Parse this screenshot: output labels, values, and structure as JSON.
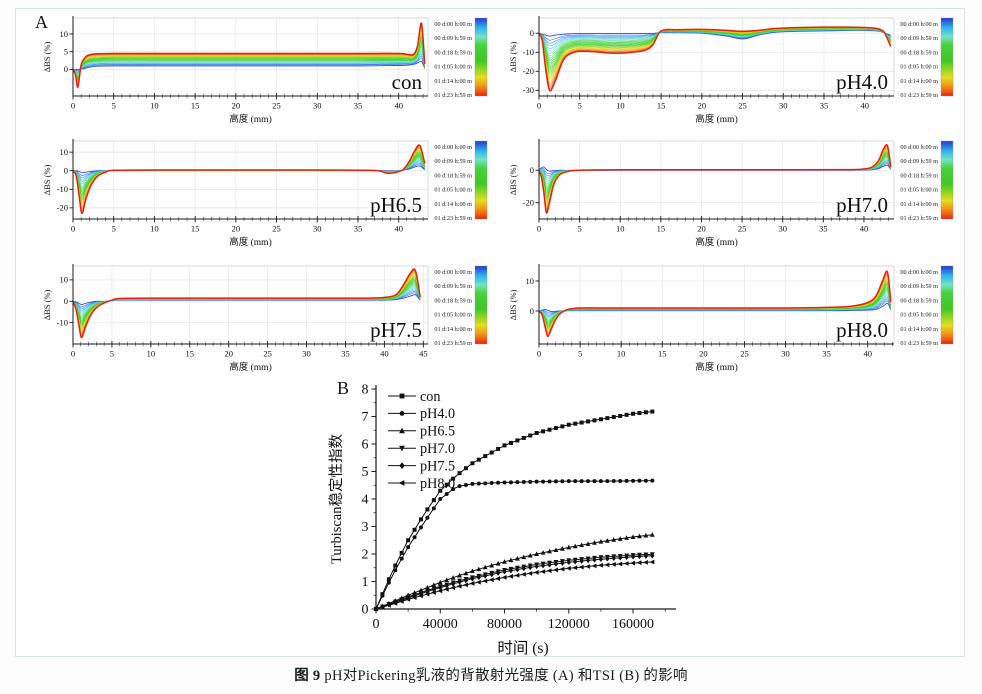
{
  "figure": {
    "panel_a_label": "A",
    "panel_b_label": "B",
    "caption_prefix": "图 9",
    "caption_body": " pH对Pickering乳液的背散射光强度 (A) 和TSI (B) 的影响"
  },
  "time_labels": [
    "00 d:00 h:00 m",
    "00 d:09 h:59 m",
    "00 d:18 h:59 m",
    "01 d:05 h:00 m",
    "01 d:14 h:00 m",
    "01 d:23 h:59 m"
  ],
  "palette": {
    "gradient_stops": [
      [
        0,
        "#2438d6"
      ],
      [
        0.13,
        "#2fb6ec"
      ],
      [
        0.24,
        "#74e4c6"
      ],
      [
        0.35,
        "#47d23c"
      ],
      [
        0.55,
        "#40c826"
      ],
      [
        0.66,
        "#90d622"
      ],
      [
        0.76,
        "#e4de1e"
      ],
      [
        0.86,
        "#f29d1a"
      ],
      [
        0.94,
        "#ee5c14"
      ],
      [
        1,
        "#e8200e"
      ]
    ],
    "axis": "#1a1a1a",
    "grid": "#dfe3e6",
    "frame": "#c3c9cd",
    "border": "#d8e6e2"
  },
  "chart_data": [
    {
      "id": "con",
      "panel": "A",
      "type": "line",
      "label": "con",
      "xlabel": "高度 (mm)",
      "ylabel": "ΔBS (%)",
      "xlim": [
        0,
        43.6
      ],
      "ylim": [
        -7.5,
        14.5
      ],
      "xticks": [
        0,
        5,
        10,
        15,
        20,
        25,
        30,
        35,
        40
      ],
      "yticks": [
        0,
        5,
        10
      ],
      "x": [
        0,
        0.3,
        0.6,
        1,
        1.5,
        2,
        3,
        5,
        10,
        15,
        20,
        25,
        30,
        35,
        40,
        41,
        41.8,
        42.3,
        42.8,
        43.2
      ],
      "initial": [
        0,
        0,
        0,
        0.1,
        0.3,
        0.6,
        0.9,
        1,
        1,
        1,
        1,
        1,
        1,
        1,
        1.1,
        1.2,
        1.4,
        1.8,
        2.2,
        0.3
      ],
      "final": [
        0,
        -1.5,
        -5,
        1.2,
        3.4,
        4.1,
        4.4,
        4.5,
        4.5,
        4.5,
        4.5,
        4.5,
        4.5,
        4.5,
        4.5,
        4.3,
        4.2,
        6.5,
        13,
        1.5
      ]
    },
    {
      "id": "ph40",
      "panel": "A",
      "type": "line",
      "label": "pH4.0",
      "xlabel": "高度 (mm)",
      "ylabel": "ΔBS (%)",
      "xlim": [
        0,
        43.6
      ],
      "ylim": [
        -33,
        8
      ],
      "xticks": [
        0,
        5,
        10,
        15,
        20,
        25,
        30,
        35,
        40
      ],
      "yticks": [
        0,
        -10,
        -20,
        -30
      ],
      "x": [
        0,
        0.4,
        0.8,
        1.3,
        2,
        3,
        4,
        5,
        7,
        9,
        11,
        13,
        14,
        15,
        17,
        20,
        23,
        25,
        27,
        29,
        32,
        35,
        38,
        40,
        41.5,
        42.3,
        42.8,
        43.2
      ],
      "initial": [
        0,
        -0.5,
        -1,
        -1.5,
        -1,
        -0.5,
        -0.3,
        -0.2,
        -0.2,
        -0.2,
        -0.2,
        -0.2,
        -0.1,
        0.3,
        0.2,
        0,
        -1.5,
        -3,
        -1,
        0.5,
        1,
        1.2,
        1.5,
        1.5,
        1.2,
        0.5,
        -0.5,
        -1
      ],
      "final": [
        0,
        -4,
        -18,
        -30,
        -25,
        -14,
        -10.5,
        -9.5,
        -9.8,
        -10.5,
        -10.2,
        -9,
        -6,
        1.2,
        1.8,
        2,
        1.5,
        1,
        1.5,
        2.5,
        3,
        3.2,
        3.2,
        3,
        2.5,
        1,
        -3,
        -7
      ]
    },
    {
      "id": "ph65",
      "panel": "A",
      "type": "line",
      "label": "pH6.5",
      "xlabel": "高度 (mm)",
      "ylabel": "ΔBS (%)",
      "xlim": [
        0,
        43.6
      ],
      "ylim": [
        -26,
        16
      ],
      "xticks": [
        0,
        5,
        10,
        15,
        20,
        25,
        30,
        35,
        40
      ],
      "yticks": [
        10,
        0,
        -10,
        -20
      ],
      "x": [
        0,
        0.4,
        0.8,
        1.1,
        1.6,
        2.2,
        3,
        4,
        5,
        10,
        20,
        30,
        35,
        37.5,
        38.5,
        39.5,
        40.5,
        41.3,
        42,
        42.6,
        43.2
      ],
      "initial": [
        0,
        0,
        -0.5,
        -1,
        -0.8,
        -0.4,
        0,
        0,
        0,
        0,
        0,
        0,
        0,
        0,
        0,
        0,
        0.3,
        1,
        2,
        2.5,
        0.5
      ],
      "final": [
        0,
        -3,
        -15,
        -23,
        -15,
        -8,
        -3,
        -0.8,
        0.2,
        0.4,
        0.4,
        0.4,
        0.3,
        0,
        -1.3,
        -1,
        0.5,
        5,
        11,
        13.5,
        4
      ]
    },
    {
      "id": "ph70",
      "panel": "A",
      "type": "line",
      "label": "pH7.0",
      "xlabel": "高度 (mm)",
      "ylabel": "ΔBS (%)",
      "xlim": [
        0,
        43.7
      ],
      "ylim": [
        -30,
        18
      ],
      "xticks": [
        0,
        5,
        10,
        15,
        20,
        25,
        30,
        35,
        40
      ],
      "yticks": [
        0,
        -20
      ],
      "x": [
        0,
        0.3,
        0.6,
        0.9,
        1.2,
        1.8,
        2.5,
        3.5,
        5,
        10,
        20,
        30,
        38,
        40,
        41,
        41.8,
        42.4,
        42.9,
        43.3
      ],
      "initial": [
        0,
        1.5,
        2,
        0.5,
        -0.5,
        -0.3,
        0,
        0,
        0,
        0,
        0,
        0,
        0,
        0,
        0.3,
        1,
        2.5,
        3,
        0.5
      ],
      "final": [
        -1,
        -4,
        -14,
        -26,
        -22,
        -9,
        -3,
        -0.8,
        0,
        0.3,
        0.3,
        0.3,
        0.4,
        0.8,
        2,
        6,
        13,
        15,
        2
      ]
    },
    {
      "id": "ph75",
      "panel": "A",
      "type": "line",
      "label": "pH7.5",
      "xlabel": "高度 (mm)",
      "ylabel": "ΔBS (%)",
      "xlim": [
        0,
        45.6
      ],
      "ylim": [
        -20,
        16.5
      ],
      "xticks": [
        0,
        5,
        10,
        15,
        20,
        25,
        30,
        35,
        40,
        45
      ],
      "yticks": [
        10,
        0,
        -10
      ],
      "x": [
        0,
        0.4,
        0.8,
        1.1,
        1.6,
        2.2,
        3,
        4,
        5,
        6,
        10,
        20,
        30,
        38,
        40,
        41.5,
        42.5,
        43.4,
        44,
        44.6
      ],
      "initial": [
        0,
        -0.3,
        -1,
        -1.5,
        -1,
        -0.5,
        0,
        0,
        0.3,
        0.5,
        0.5,
        0.5,
        0.5,
        0.5,
        0.5,
        0.8,
        1.5,
        2.5,
        3,
        0.5
      ],
      "final": [
        0,
        -4,
        -12,
        -17,
        -12,
        -7,
        -3,
        -0.8,
        0.5,
        1.3,
        1.5,
        1.5,
        1.5,
        1.5,
        1.8,
        3,
        8,
        13.5,
        14.2,
        2
      ]
    },
    {
      "id": "ph80",
      "panel": "A",
      "type": "line",
      "label": "pH8.0",
      "xlabel": "高度 (mm)",
      "ylabel": "ΔBS (%)",
      "xlim": [
        0,
        43.2
      ],
      "ylim": [
        -11,
        15
      ],
      "xticks": [
        0,
        5,
        10,
        15,
        20,
        25,
        30,
        35,
        40
      ],
      "yticks": [
        10,
        0
      ],
      "x": [
        0,
        0.4,
        0.8,
        1.1,
        1.5,
        2,
        2.6,
        3.5,
        5,
        10,
        20,
        30,
        35,
        38,
        40,
        41,
        41.8,
        42.4,
        42.8
      ],
      "initial": [
        0,
        0.3,
        0.5,
        0.2,
        -0.2,
        -0.1,
        0,
        0.1,
        0.1,
        0.1,
        0.1,
        0.1,
        0.1,
        0.2,
        0.3,
        0.5,
        1.5,
        2.5,
        0.5
      ],
      "final": [
        0,
        -1.5,
        -6,
        -8.5,
        -6,
        -3,
        -0.8,
        0.5,
        1,
        1,
        1,
        1,
        1.2,
        1.6,
        2.8,
        5,
        10,
        13,
        3
      ]
    },
    {
      "id": "tsi",
      "panel": "B",
      "type": "line",
      "xlabel": "时间 (s)",
      "ylabel": "Turbiscan稳定性指数",
      "xlim": [
        0,
        183000
      ],
      "ylim": [
        0,
        8
      ],
      "xticks": [
        0,
        40000,
        80000,
        120000,
        160000
      ],
      "yticks": [
        0,
        1,
        2,
        3,
        4,
        5,
        6,
        7,
        8
      ],
      "key_t": [
        0,
        10000,
        20000,
        30000,
        40000,
        50000,
        60000,
        80000,
        100000,
        120000,
        140000,
        160000,
        175000
      ],
      "series": [
        {
          "name": "con",
          "marker": "square",
          "values": [
            0,
            1.35,
            2.5,
            3.45,
            4.3,
            4.85,
            5.3,
            5.95,
            6.4,
            6.7,
            6.9,
            7.1,
            7.2
          ]
        },
        {
          "name": "pH4.0",
          "marker": "circle",
          "values": [
            0,
            1.2,
            2.25,
            3.15,
            4.0,
            4.45,
            4.55,
            4.6,
            4.63,
            4.65,
            4.65,
            4.66,
            4.67
          ]
        },
        {
          "name": "pH6.5",
          "marker": "triangle-up",
          "values": [
            0,
            0.25,
            0.5,
            0.73,
            0.97,
            1.18,
            1.38,
            1.72,
            2.0,
            2.24,
            2.45,
            2.62,
            2.72
          ]
        },
        {
          "name": "pH7.0",
          "marker": "triangle-down",
          "values": [
            0,
            0.22,
            0.44,
            0.64,
            0.82,
            1.0,
            1.15,
            1.42,
            1.62,
            1.77,
            1.88,
            1.96,
            2.0
          ]
        },
        {
          "name": "pH7.5",
          "marker": "diamond",
          "values": [
            0,
            0.2,
            0.4,
            0.6,
            0.78,
            0.95,
            1.1,
            1.36,
            1.55,
            1.7,
            1.81,
            1.9,
            1.95
          ]
        },
        {
          "name": "pH8.0",
          "marker": "triangle-left",
          "values": [
            0,
            0.17,
            0.35,
            0.51,
            0.66,
            0.8,
            0.93,
            1.15,
            1.33,
            1.48,
            1.59,
            1.67,
            1.72
          ]
        }
      ]
    }
  ]
}
